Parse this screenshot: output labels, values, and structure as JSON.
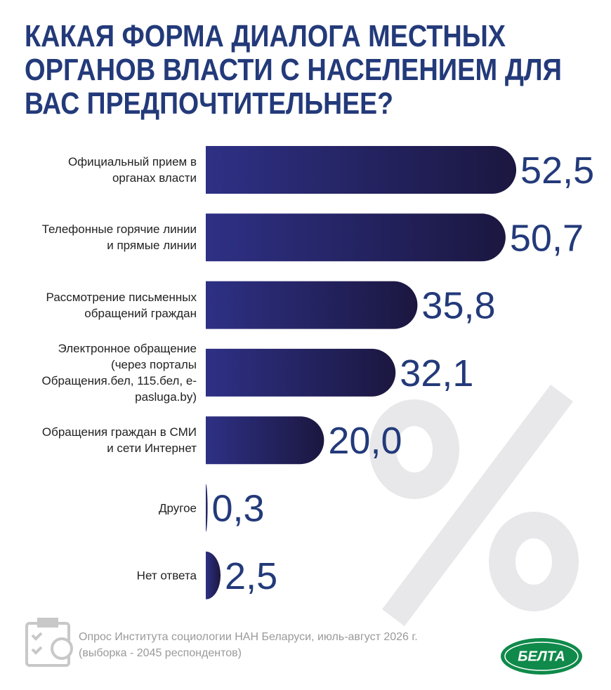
{
  "chart_data": {
    "type": "bar",
    "orientation": "horizontal",
    "title": [
      "КАКАЯ ФОРМА ДИАЛОГА МЕСТНЫХ",
      "ОРГАНОВ ВЛАСТИ С НАСЕЛЕНИЕМ ДЛЯ",
      "ВАС ПРЕДПОЧТИТЕЛЬНЕЕ?"
    ],
    "categories": [
      "Официальный прием в органах власти",
      "Телефонные горячие линии и прямые линии",
      "Рассмотрение письменных обращений граждан",
      "Электронное обращение (через порталы Обращения.бел, 115.бел, e-pasluga.by)",
      "Обращения граждан в СМИ и сети Интернет",
      "Другое",
      "Нет ответа"
    ],
    "values": [
      52.5,
      50.7,
      35.8,
      32.1,
      20.0,
      0.3,
      2.5
    ],
    "value_labels": [
      "52,5",
      "50,7",
      "35,8",
      "32,1",
      "20,0",
      "0,3",
      "2,5"
    ],
    "color": "#2e3085",
    "source": [
      "Опрос Института социологии НАН Беларуси, июль-август 2026 г.",
      "(выборка - 2045 респондентов)"
    ],
    "logo": "БЕЛТА"
  }
}
